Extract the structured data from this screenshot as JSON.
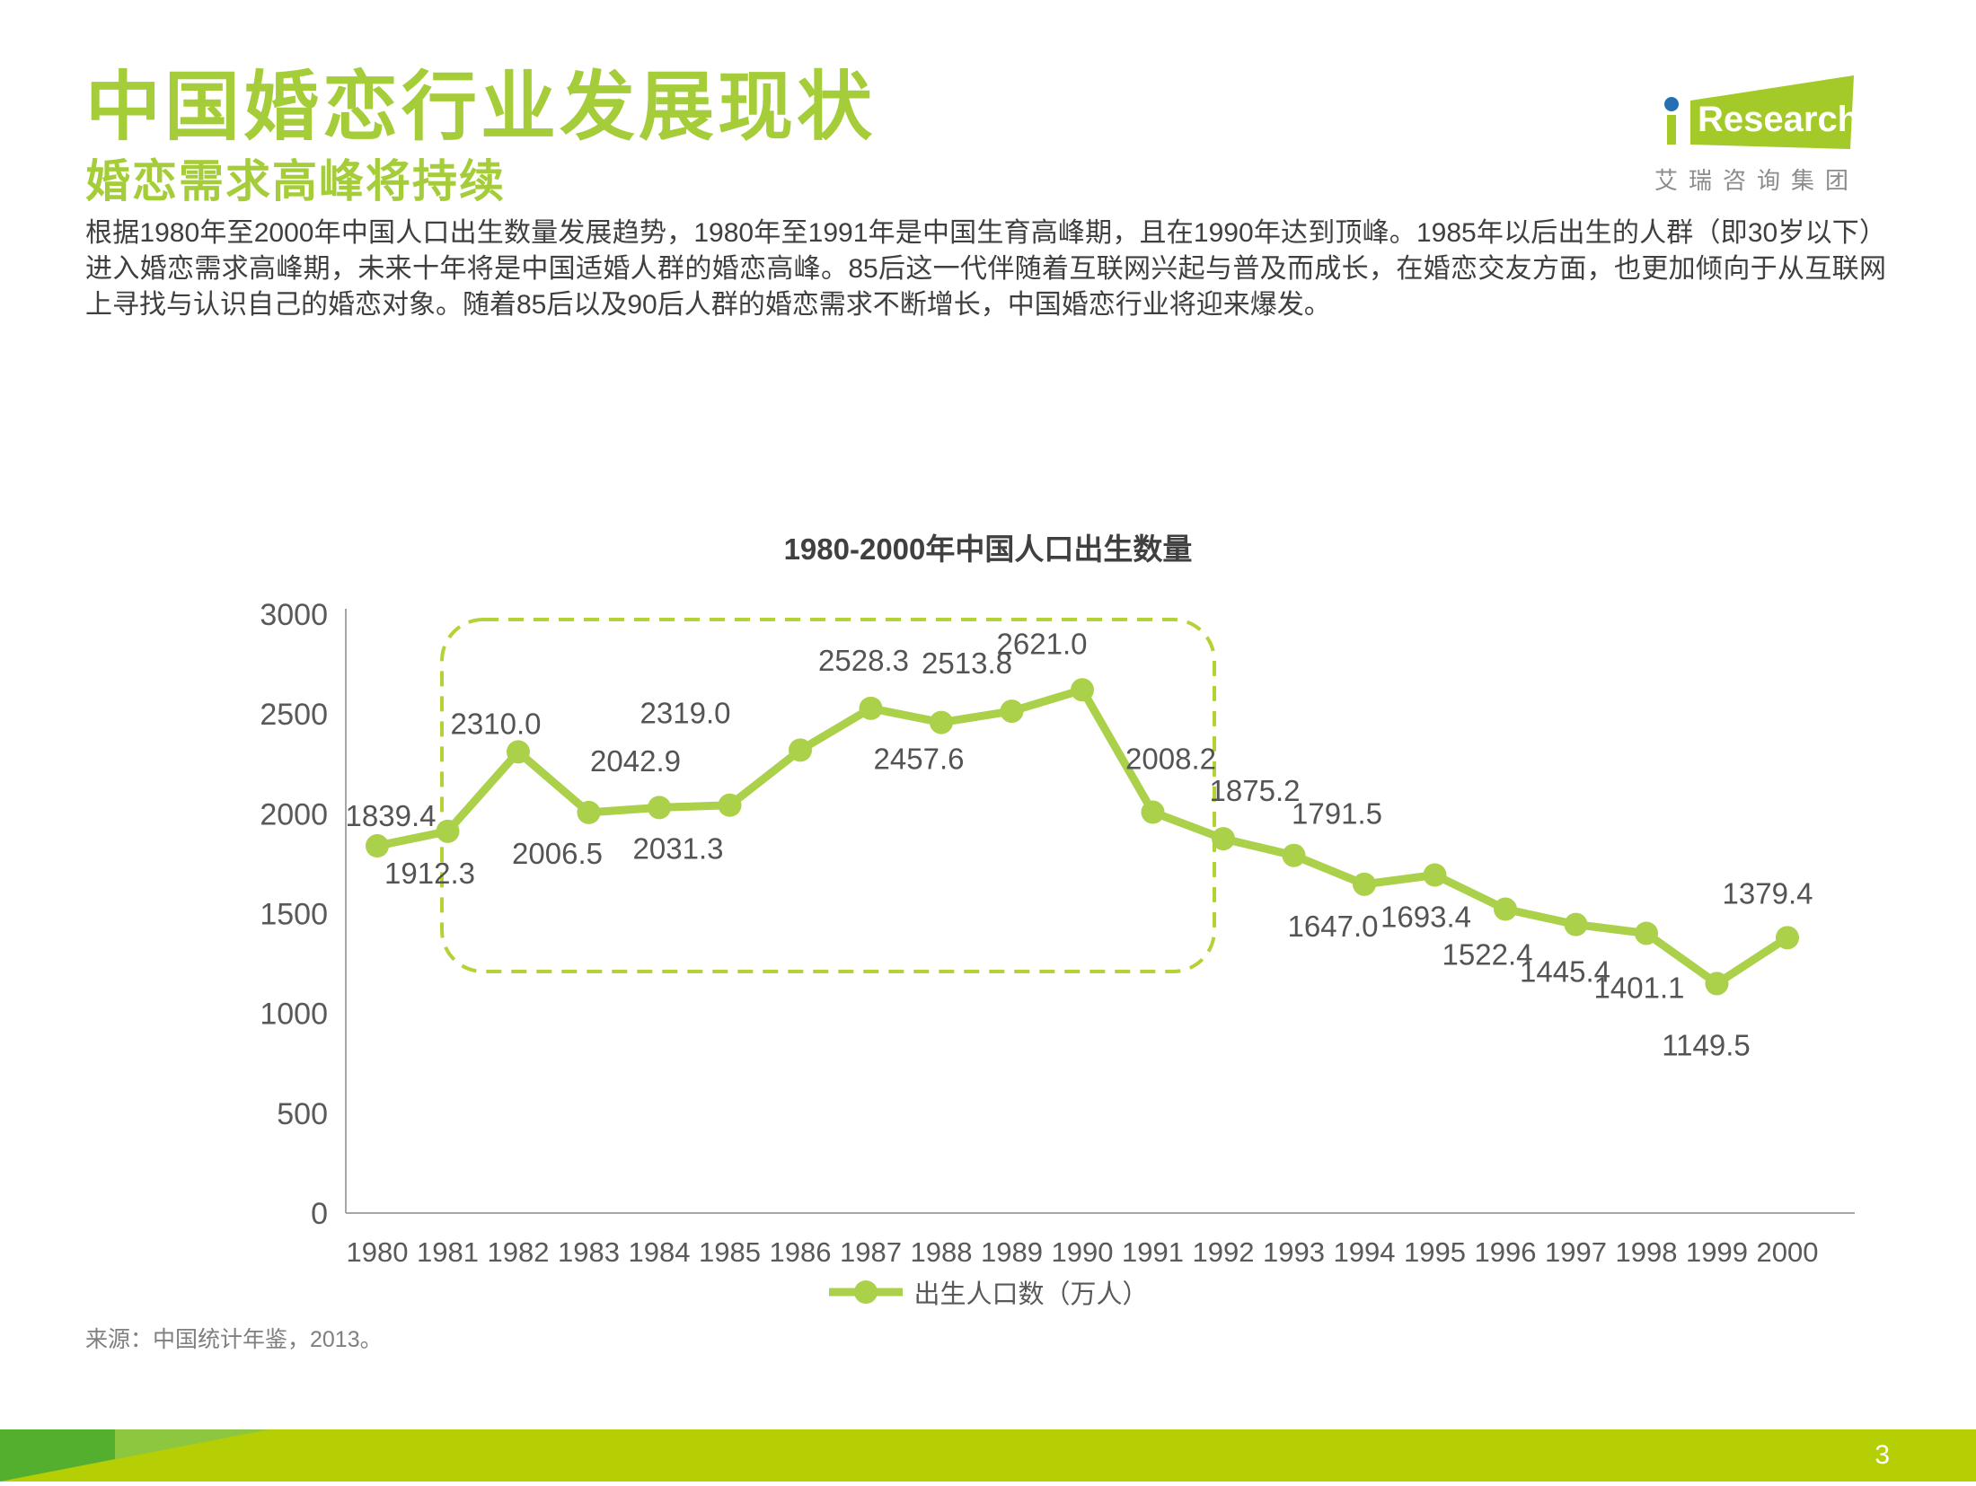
{
  "header": {
    "title": "中国婚恋行业发展现状",
    "subtitle": "婚恋需求高峰将持续",
    "paragraph": "根据1980年至2000年中国人口出生数量发展趋势，1980年至1991年是中国生育高峰期，且在1990年达到顶峰。1985年以后出生的人群（即30岁以下）进入婚恋需求高峰期，未来十年将是中国适婚人群的婚恋高峰。85后这一代伴随着互联网兴起与普及而成长，在婚恋交友方面，也更加倾向于从互联网上寻找与认识自己的婚恋对象。随着85后以及90后人群的婚恋需求不断增长，中国婚恋行业将迎来爆发。"
  },
  "logo": {
    "i": "i",
    "name": "Research",
    "subtext": "艾瑞咨询集团"
  },
  "chart": {
    "title": "1980-2000年中国人口出生数量",
    "legend_label": "出生人口数（万人）",
    "source": "来源：中国统计年鉴，2013。"
  },
  "chart_data": {
    "type": "line",
    "title": "1980-2000年中国人口出生数量",
    "categories": [
      "1980",
      "1981",
      "1982",
      "1983",
      "1984",
      "1985",
      "1986",
      "1987",
      "1988",
      "1989",
      "1990",
      "1991",
      "1992",
      "1993",
      "1994",
      "1995",
      "1996",
      "1997",
      "1998",
      "1999",
      "2000"
    ],
    "series": [
      {
        "name": "出生人口数（万人）",
        "values": [
          1839.4,
          1912.3,
          2310.0,
          2006.5,
          2031.3,
          2042.9,
          2319.0,
          2528.3,
          2457.6,
          2513.8,
          2621.0,
          2008.2,
          1875.2,
          1791.5,
          1647.0,
          1693.4,
          1522.4,
          1445.4,
          1401.1,
          1149.5,
          1379.4
        ]
      }
    ],
    "xlabel": "",
    "ylabel": "",
    "ylim": [
      0,
      3000
    ],
    "yticks": [
      0,
      500,
      1000,
      1500,
      2000,
      2500,
      3000
    ],
    "grid": false,
    "value_labels": true,
    "legend_position": "bottom",
    "highlight_box": {
      "from": "1981",
      "to": "1991",
      "style": "dashed-rounded"
    }
  },
  "colors": {
    "accent_green": "#a5cd39",
    "line_green": "#abd04a",
    "dashed_box_green": "#b2d235",
    "bar_chartreuse": "#b6ce04",
    "bar_mid_green": "#8dc63f",
    "bar_dark_green": "#55af2e",
    "logo_blue": "#2470b3",
    "logo_green": "#a3ca28",
    "text_dark": "#404040",
    "text_gray": "#595959",
    "text_light_gray": "#7f7f7f",
    "axis_gray": "#a6a6a6"
  },
  "footer": {
    "page_number": "3"
  }
}
